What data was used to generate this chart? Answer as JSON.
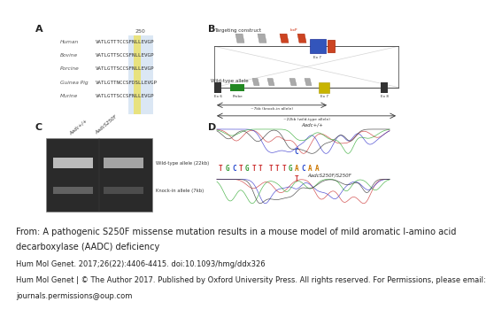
{
  "panel_bg": "#ffffff",
  "separator_color": "#bbbbbb",
  "caption_lines": [
    "From: A pathogenic S250F missense mutation results in a mouse model of mild aromatic l-amino acid",
    "decarboxylase (AADC) deficiency",
    "Hum Mol Genet. 2017;26(22):4406-4415. doi:10.1093/hmg/ddx326",
    "Hum Mol Genet | © The Author 2017. Published by Oxford University Press. All rights reserved. For Permissions, please email:",
    "journals.permissions@oup.com"
  ],
  "species_labels": [
    "Human",
    "Bovine",
    "Porcine",
    "Guinea Pig",
    "Murine"
  ],
  "sequences": [
    "VATLGTTTCCSFNLLEVGP",
    "VATLGTTSCCSFNLLEVGP",
    "VATLGTTSCCSFNLLEVGP",
    "VATLGTTNCCSFDSLLEVGP",
    "VATLGTTSCCSFNLLEVGP"
  ],
  "wt_allele_label": "Wild-type allele (22kb)",
  "ki_allele_label": "Knock-in allele (7kb)",
  "targeting_label": "Targeting construct",
  "wt_allele_diagram": "Wild-type allele",
  "probe_label": "Probe",
  "ex6_label": "Ex 6",
  "ex7_label": "Ex 7",
  "ex8_label": "Ex 8",
  "knock_in_label": "~7kb (knock-in allele)",
  "wt_allele_size": "~22kb (wild-type allele)",
  "aadc_wt_genotype": "Aadc+/+",
  "aadc_mut_genotype": "AadcS250F/S250F"
}
